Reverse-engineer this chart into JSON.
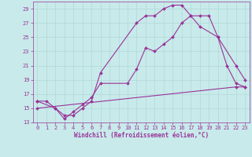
{
  "xlabel": "Windchill (Refroidissement éolien,°C)",
  "background_color": "#c8eaea",
  "grid_color": "#b0d8d8",
  "line_color": "#993399",
  "xlim": [
    -0.5,
    23.5
  ],
  "ylim": [
    13,
    30
  ],
  "yticks": [
    13,
    15,
    17,
    19,
    21,
    23,
    25,
    27,
    29
  ],
  "xticks": [
    0,
    1,
    2,
    3,
    4,
    5,
    6,
    7,
    8,
    9,
    10,
    11,
    12,
    13,
    14,
    15,
    16,
    17,
    18,
    19,
    20,
    21,
    22,
    23
  ],
  "line1_x": [
    0,
    1,
    2,
    3,
    4,
    5,
    6,
    7,
    11,
    12,
    13,
    14,
    15,
    16,
    17,
    18,
    20,
    22,
    23
  ],
  "line1_y": [
    16,
    16,
    15,
    14,
    14,
    15,
    16,
    20,
    27,
    28,
    28,
    29,
    29.5,
    29.5,
    28,
    26.5,
    25,
    21,
    19
  ],
  "line2_x": [
    0,
    2,
    3,
    4,
    5,
    6,
    7,
    10,
    11,
    12,
    13,
    14,
    15,
    16,
    17,
    18,
    19,
    20,
    21,
    22,
    23
  ],
  "line2_y": [
    16,
    15,
    13.5,
    14.5,
    15.5,
    16.5,
    18.5,
    18.5,
    20.5,
    23.5,
    23,
    24,
    25,
    27,
    28,
    28,
    28,
    25,
    21,
    18.5,
    18
  ],
  "line3_x": [
    0,
    22,
    23
  ],
  "line3_y": [
    15,
    18,
    18
  ]
}
